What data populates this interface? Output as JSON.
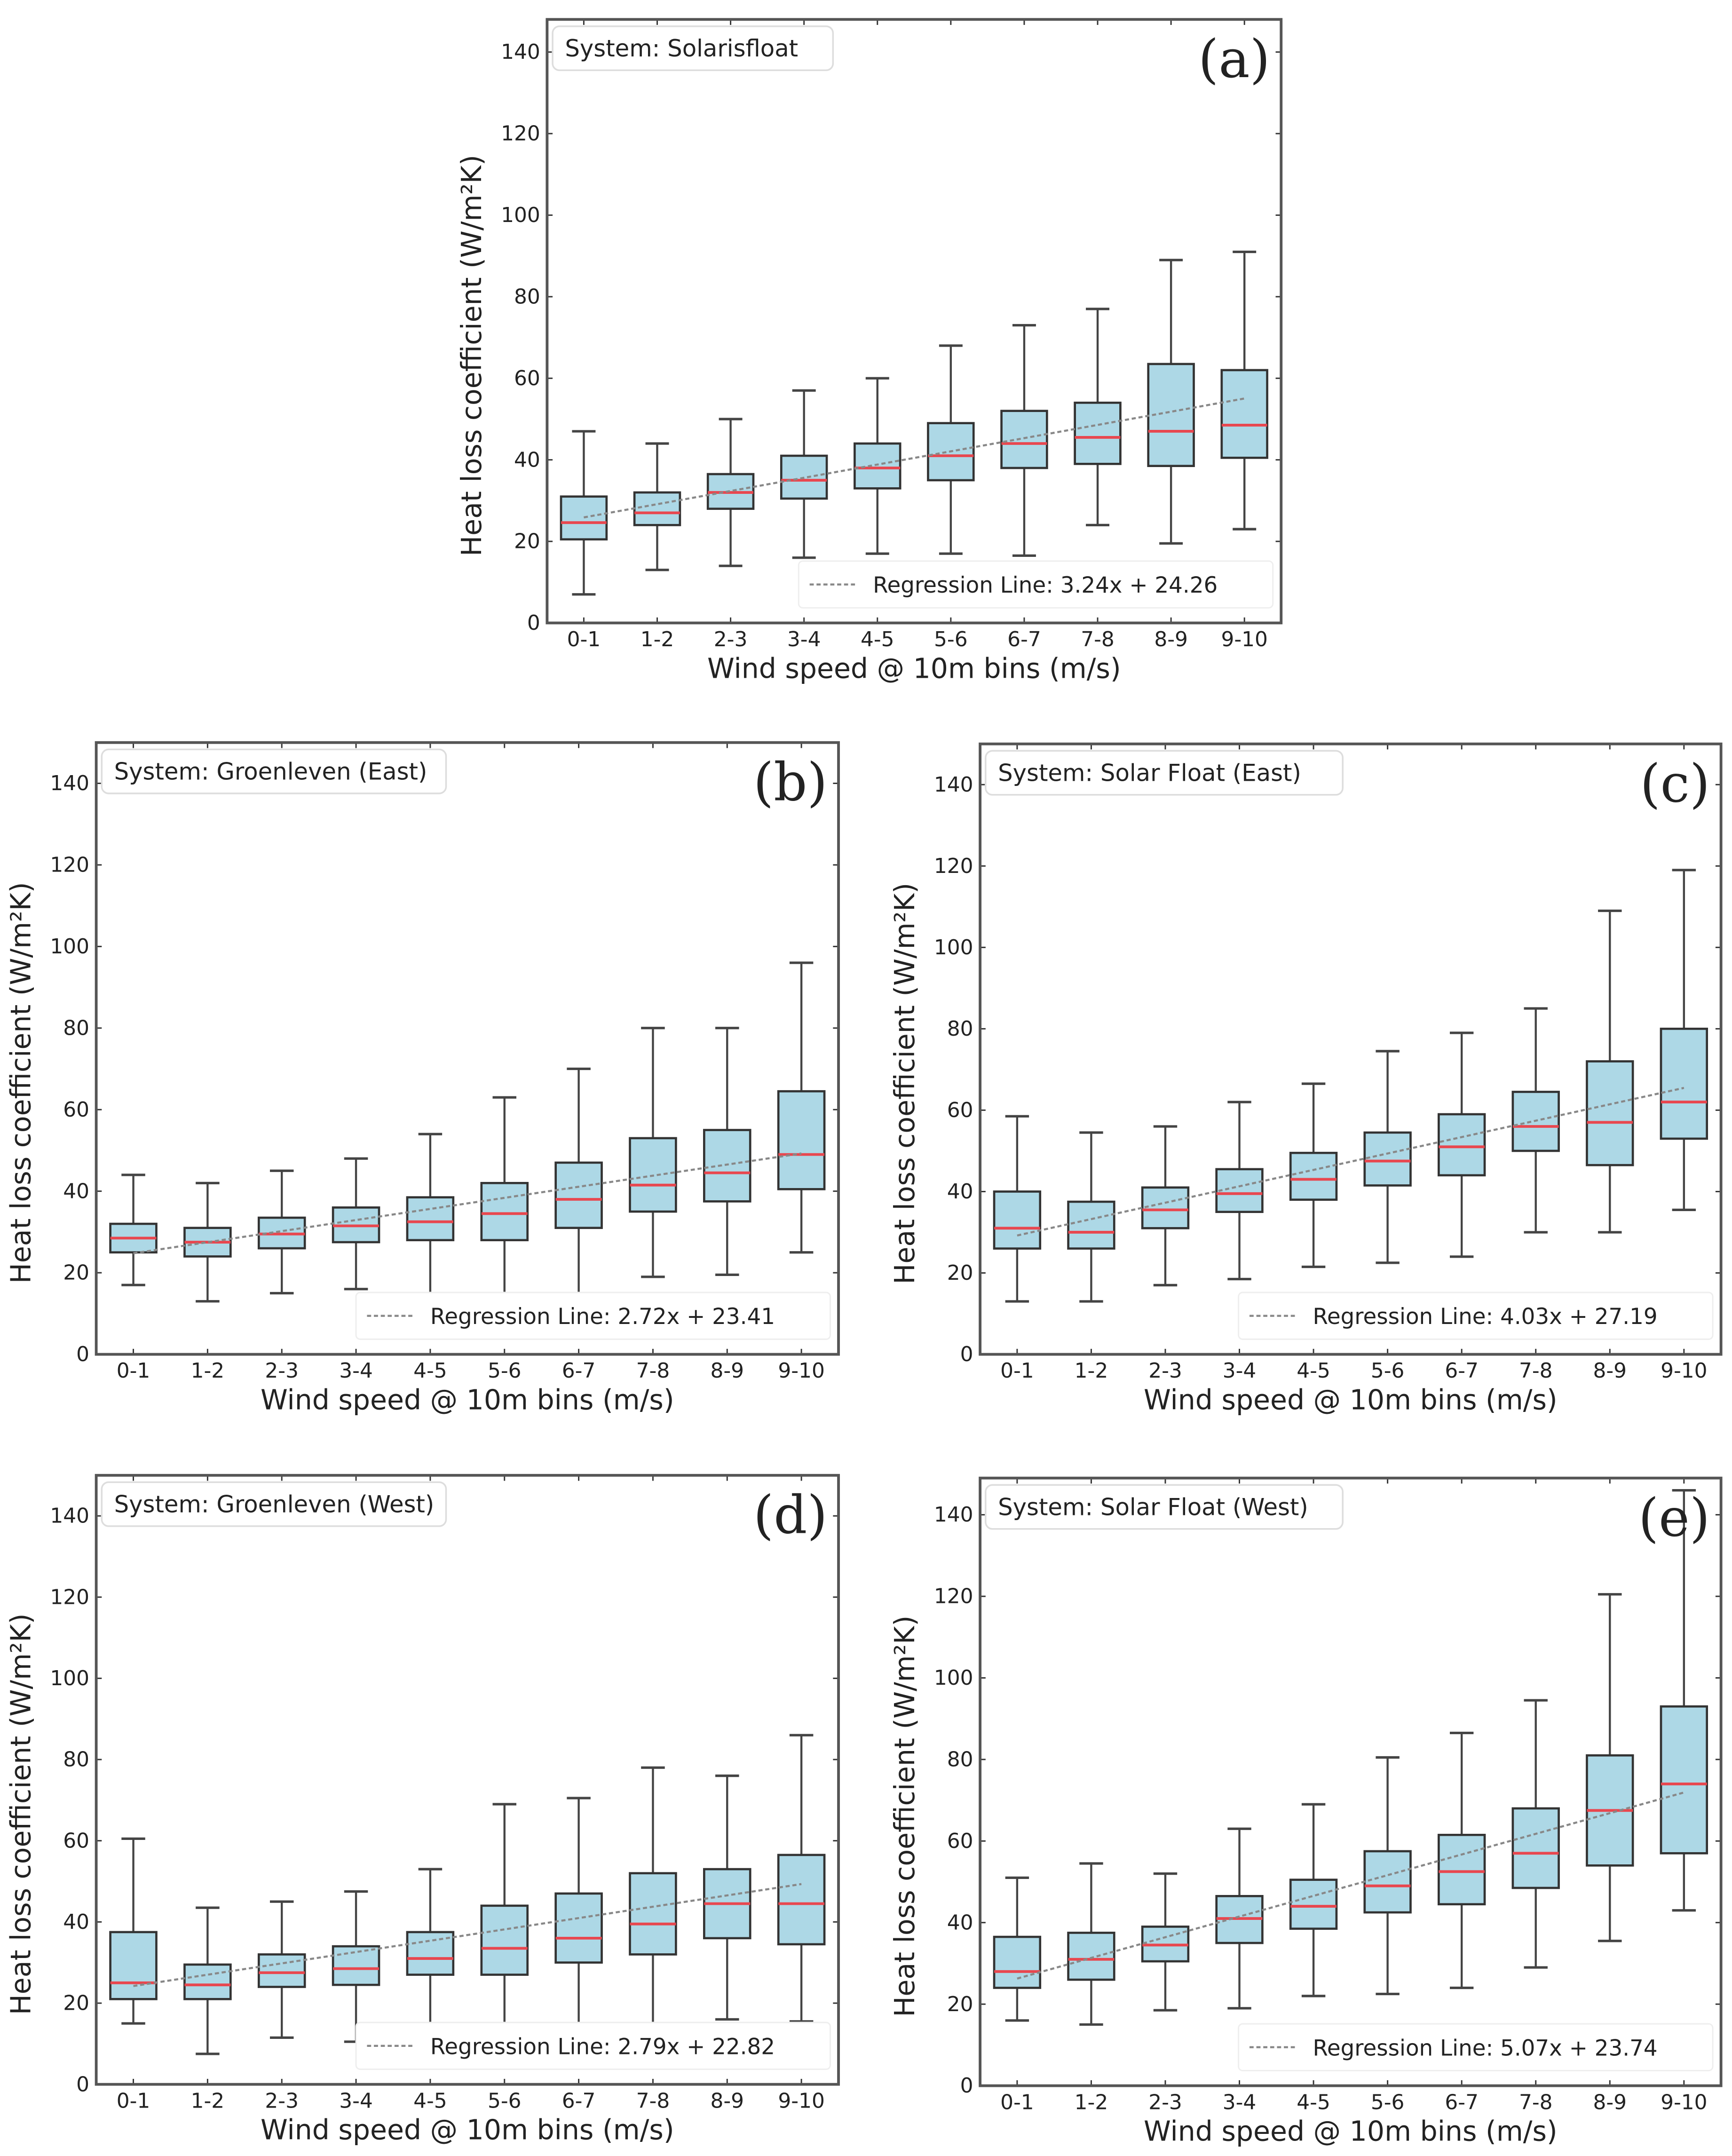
{
  "chart_data": [
    {
      "id": "a",
      "type": "box",
      "panel_label": "(a)",
      "system_label": "System: Solarisfloat",
      "xlabel": "Wind speed @ 10m bins (m/s)",
      "ylabel": "Heat loss coefficient (W/m²K)",
      "ylim": [
        0,
        148
      ],
      "yticks": [
        0,
        20,
        40,
        60,
        80,
        100,
        120,
        140
      ],
      "categories": [
        "0-1",
        "1-2",
        "2-3",
        "3-4",
        "4-5",
        "5-6",
        "6-7",
        "7-8",
        "8-9",
        "9-10"
      ],
      "boxes": [
        [
          7,
          20.5,
          24.6,
          31,
          47
        ],
        [
          13,
          24,
          27,
          32,
          44
        ],
        [
          14,
          28,
          32,
          36.5,
          50
        ],
        [
          16,
          30.5,
          35,
          41,
          57
        ],
        [
          17,
          33,
          38,
          44,
          60
        ],
        [
          17,
          35,
          41,
          49,
          68
        ],
        [
          16.5,
          38,
          44,
          52,
          73
        ],
        [
          24,
          39,
          45.5,
          54,
          77
        ],
        [
          19.5,
          38.5,
          47,
          63.5,
          89
        ],
        [
          23,
          40.5,
          48.5,
          62,
          91
        ]
      ],
      "regression": {
        "slope": 3.24,
        "intercept": 24.26,
        "label": "Regression Line: 3.24x + 24.26"
      }
    },
    {
      "id": "b",
      "type": "box",
      "panel_label": "(b)",
      "system_label": "System: Groenleven (East)",
      "xlabel": "Wind speed @ 10m bins (m/s)",
      "ylabel": "Heat loss coefficient (W/m²K)",
      "ylim": [
        0,
        150
      ],
      "yticks": [
        0,
        20,
        40,
        60,
        80,
        100,
        120,
        140
      ],
      "categories": [
        "0-1",
        "1-2",
        "2-3",
        "3-4",
        "4-5",
        "5-6",
        "6-7",
        "7-8",
        "8-9",
        "9-10"
      ],
      "boxes": [
        [
          17,
          25,
          28.5,
          32,
          44
        ],
        [
          13,
          24,
          27.5,
          31,
          42
        ],
        [
          15,
          26,
          29.5,
          33.5,
          45
        ],
        [
          16,
          27.5,
          31.5,
          36,
          48
        ],
        [
          14,
          28,
          32.5,
          38.5,
          54
        ],
        [
          14.5,
          28,
          34.5,
          42,
          63
        ],
        [
          13,
          31,
          38,
          47,
          70
        ],
        [
          19,
          35,
          41.5,
          53,
          80
        ],
        [
          19.5,
          37.5,
          44.5,
          55,
          80
        ],
        [
          25,
          40.5,
          49,
          64.5,
          96
        ]
      ],
      "regression": {
        "slope": 2.72,
        "intercept": 23.41,
        "label": "Regression Line: 2.72x + 23.41"
      }
    },
    {
      "id": "c",
      "type": "box",
      "panel_label": "(c)",
      "system_label": "System: Solar Float (East)",
      "xlabel": "Wind speed @ 10m bins (m/s)",
      "ylabel": "Heat loss coefficient (W/m²K)",
      "ylim": [
        0,
        150
      ],
      "yticks": [
        0,
        20,
        40,
        60,
        80,
        100,
        120,
        140
      ],
      "categories": [
        "0-1",
        "1-2",
        "2-3",
        "3-4",
        "4-5",
        "5-6",
        "6-7",
        "7-8",
        "8-9",
        "9-10"
      ],
      "boxes": [
        [
          13,
          26,
          31,
          40,
          58.5
        ],
        [
          13,
          26,
          30,
          37.5,
          54.5
        ],
        [
          17,
          31,
          35.5,
          41,
          56
        ],
        [
          18.5,
          35,
          39.5,
          45.5,
          62
        ],
        [
          21.5,
          38,
          43,
          49.5,
          66.5
        ],
        [
          22.5,
          41.5,
          47.5,
          54.5,
          74.5
        ],
        [
          24,
          44,
          51,
          59,
          79
        ],
        [
          30,
          50,
          56,
          64.5,
          85
        ],
        [
          30,
          46.5,
          57,
          72,
          109
        ],
        [
          35.5,
          53,
          62,
          80,
          119
        ]
      ],
      "regression": {
        "slope": 4.03,
        "intercept": 27.19,
        "label": "Regression Line: 4.03x + 27.19"
      }
    },
    {
      "id": "d",
      "type": "box",
      "panel_label": "(d)",
      "system_label": "System: Groenleven (West)",
      "xlabel": "Wind speed @ 10m bins (m/s)",
      "ylabel": "Heat loss coefficient (W/m²K)",
      "ylim": [
        0,
        150
      ],
      "yticks": [
        0,
        20,
        40,
        60,
        80,
        100,
        120,
        140
      ],
      "categories": [
        "0-1",
        "1-2",
        "2-3",
        "3-4",
        "4-5",
        "5-6",
        "6-7",
        "7-8",
        "8-9",
        "9-10"
      ],
      "boxes": [
        [
          15,
          21,
          25,
          37.5,
          60.5
        ],
        [
          7.5,
          21,
          24.5,
          29.5,
          43.5
        ],
        [
          11.5,
          24,
          27.5,
          32,
          45
        ],
        [
          10.5,
          24.5,
          28.5,
          34,
          47.5
        ],
        [
          12,
          27,
          31,
          37.5,
          53
        ],
        [
          13,
          27,
          33.5,
          44,
          69
        ],
        [
          13,
          30,
          36,
          47,
          70.5
        ],
        [
          10,
          32,
          39.5,
          52,
          78
        ],
        [
          16,
          36,
          44.5,
          53,
          76
        ],
        [
          15.5,
          34.5,
          44.5,
          56.5,
          86
        ]
      ],
      "regression": {
        "slope": 2.79,
        "intercept": 22.82,
        "label": "Regression Line: 2.79x + 22.82"
      }
    },
    {
      "id": "e",
      "type": "box",
      "panel_label": "(e)",
      "system_label": "System: Solar Float (West)",
      "xlabel": "Wind speed @ 10m bins (m/s)",
      "ylabel": "Heat loss coefficient (W/m²K)",
      "ylim": [
        0,
        149
      ],
      "yticks": [
        0,
        20,
        40,
        60,
        80,
        100,
        120,
        140
      ],
      "categories": [
        "0-1",
        "1-2",
        "2-3",
        "3-4",
        "4-5",
        "5-6",
        "6-7",
        "7-8",
        "8-9",
        "9-10"
      ],
      "boxes": [
        [
          16,
          24,
          28,
          36.5,
          51
        ],
        [
          15,
          26,
          31,
          37.5,
          54.5
        ],
        [
          18.5,
          30.5,
          34.5,
          39,
          52
        ],
        [
          19,
          35,
          41,
          46.5,
          63
        ],
        [
          22,
          38.5,
          44,
          50.5,
          69
        ],
        [
          22.5,
          42.5,
          49,
          57.5,
          80.5
        ],
        [
          24,
          44.5,
          52.5,
          61.5,
          86.5
        ],
        [
          29,
          48.5,
          57,
          68,
          94.5
        ],
        [
          35.5,
          54,
          67.5,
          81,
          120.5
        ],
        [
          43,
          57,
          74,
          93,
          146
        ]
      ],
      "regression": {
        "slope": 5.07,
        "intercept": 23.74,
        "label": "Regression Line: 5.07x + 23.74"
      }
    }
  ],
  "colors": {
    "box_fill": "#add8e6",
    "median": "#e8474f",
    "frame": "#555555",
    "regression": "#888888"
  }
}
